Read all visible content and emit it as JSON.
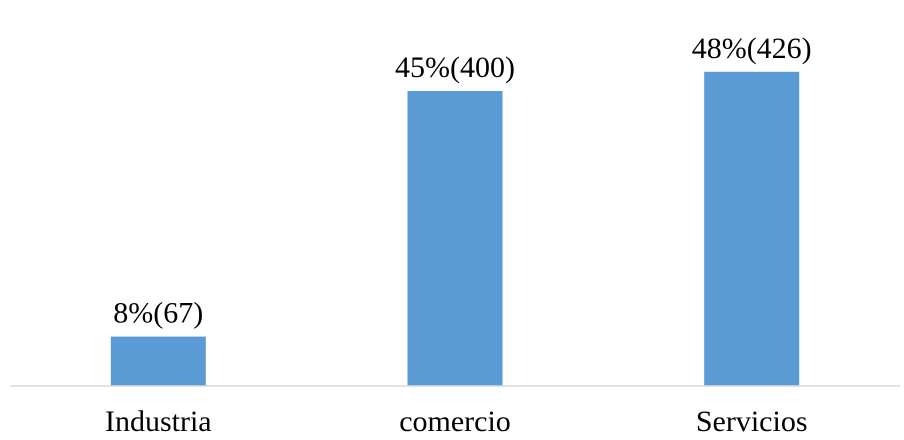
{
  "colors": {
    "bar": "#5b9bd5",
    "axis": "#d9d9d9",
    "text": "#000000"
  },
  "chart_data": {
    "type": "bar",
    "categories": [
      "Industria",
      "comercio",
      "Servicios"
    ],
    "values": [
      67,
      400,
      426
    ],
    "data_labels": [
      "8%(67)",
      "45%(400)",
      "48%(426)"
    ],
    "title": "",
    "xlabel": "",
    "ylabel": "",
    "ylim": [
      0,
      450
    ],
    "grid": false,
    "legend": "none"
  }
}
